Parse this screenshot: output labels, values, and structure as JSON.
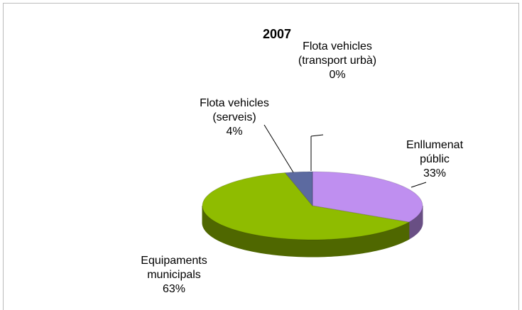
{
  "chart_data": {
    "type": "pie3d",
    "title": "2007",
    "categories": [
      "Enllumenat públic",
      "Equipaments municipals",
      "Flota vehicles (serveis)",
      "Flota vehicles (transport urbà)"
    ],
    "values": [
      33,
      63,
      4,
      0
    ],
    "value_labels": [
      "33%",
      "63%",
      "4%",
      "0%"
    ],
    "colors": [
      "#bf8ff0",
      "#8fbc00",
      "#5c6aa0",
      "#4a5a90"
    ]
  }
}
